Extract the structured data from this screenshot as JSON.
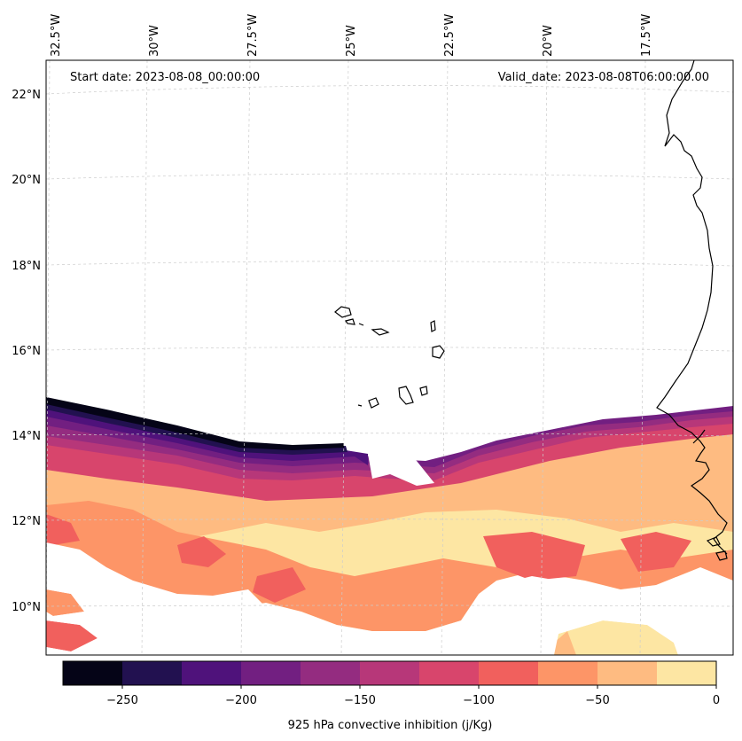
{
  "map": {
    "start_date": "Start date: 2023-08-08_00:00:00",
    "valid_date": "Valid_date: 2023-08-08T06:00:00.00",
    "lon_labels": [
      "32.5°W",
      "30°W",
      "27.5°W",
      "25°W",
      "22.5°W",
      "20°W",
      "17.5°W"
    ],
    "lat_labels": [
      "22°N",
      "20°N",
      "18°N",
      "16°N",
      "14°N",
      "12°N",
      "10°N"
    ]
  },
  "colorbar": {
    "label": "925 hPa convective inhibition (j/Kg)",
    "tick_labels": [
      "−250",
      "−200",
      "−150",
      "−100",
      "−50",
      "0"
    ],
    "colors": [
      "#050417",
      "#221150",
      "#4f127b",
      "#721f81",
      "#942c80",
      "#b73779",
      "#d8456c",
      "#f1605d",
      "#fd9567",
      "#febb81",
      "#fde6a3"
    ]
  }
}
